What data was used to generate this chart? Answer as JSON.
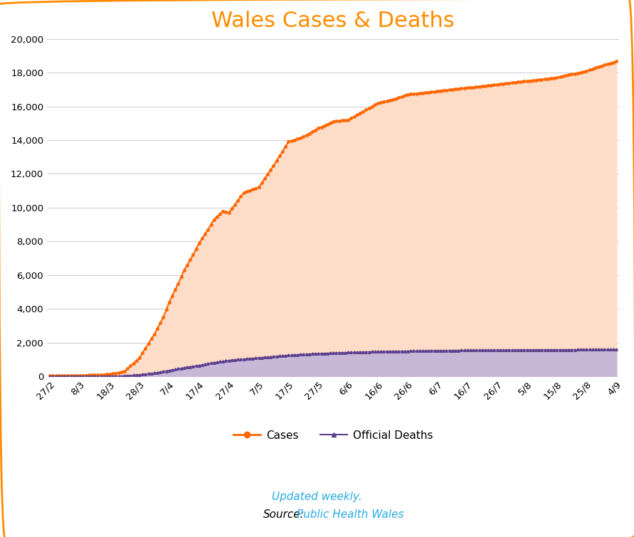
{
  "title": "Wales Cases & Deaths",
  "title_color": "#FF8C00",
  "background_color": "#FFFFFF",
  "border_color": "#FF8C00",
  "fill_cases_color": "#FDDCC8",
  "fill_deaths_color": "#C8B8D8",
  "line_cases_color": "#FF6600",
  "line_deaths_color": "#5B3E8C",
  "x_labels": [
    "27/2",
    "8/3",
    "18/3",
    "28/3",
    "7/4",
    "17/4",
    "27/4",
    "7/5",
    "17/5",
    "27/5",
    "6/6",
    "16/6",
    "26/6",
    "6/7",
    "16/7",
    "26/7",
    "5/8",
    "15/8",
    "25/8",
    "4/9"
  ],
  "x_label_indices": [
    0,
    10,
    20,
    30,
    40,
    50,
    60,
    70,
    80,
    90,
    100,
    110,
    120,
    130,
    140,
    150,
    160,
    170,
    180,
    190
  ],
  "ylim": [
    0,
    20000
  ],
  "yticks": [
    0,
    2000,
    4000,
    6000,
    8000,
    10000,
    12000,
    14000,
    16000,
    18000,
    20000
  ],
  "legend_cases": "Cases",
  "legend_deaths": "Official Deaths",
  "note_text": "Updated weekly.",
  "source_label": "Source:",
  "source_link": "Public Health Wales",
  "source_url_color": "#29ABE2",
  "note_color": "#29ABE2",
  "grid_color": "#CCCCCC",
  "tick_label_fontsize": 9.5,
  "total_points": 191
}
